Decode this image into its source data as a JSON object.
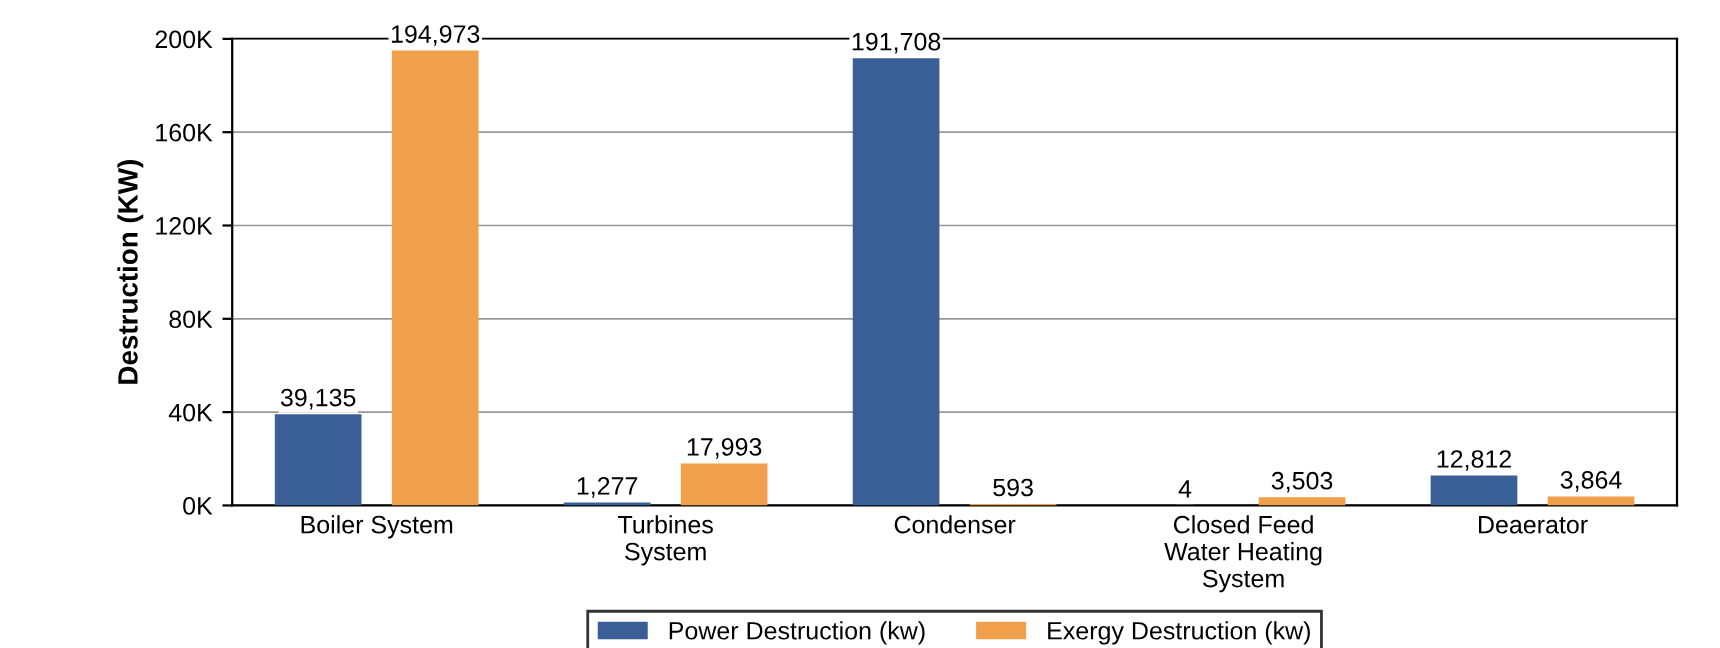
{
  "chart_data": {
    "type": "bar",
    "ylabel": "Destruction (KW)",
    "categories": [
      "Boiler System",
      "Turbines\nSystem",
      "Condenser",
      "Closed Feed\nWater Heating\nSystem",
      "Deaerator"
    ],
    "series": [
      {
        "name": "Power Destruction (kw)",
        "color": "#3a5f96",
        "values": [
          39135,
          1277,
          191708,
          4,
          12812
        ],
        "value_labels": [
          "39,135",
          "1,277",
          "191,708",
          "4",
          "12,812"
        ]
      },
      {
        "name": "Exergy Destruction (kw)",
        "color": "#f0a04b",
        "values": [
          194973,
          17993,
          593,
          3503,
          3864
        ],
        "value_labels": [
          "194,973",
          "17,993",
          "593",
          "3,503",
          "3,864"
        ]
      }
    ],
    "ylim": [
      0,
      200000
    ],
    "yticks": [
      {
        "value": 0,
        "label": "0K"
      },
      {
        "value": 40000,
        "label": "40K"
      },
      {
        "value": 80000,
        "label": "80K"
      },
      {
        "value": 120000,
        "label": "120K"
      },
      {
        "value": 160000,
        "label": "160K"
      },
      {
        "value": 200000,
        "label": "200K"
      }
    ],
    "grid": "y",
    "legend": "bottom"
  }
}
